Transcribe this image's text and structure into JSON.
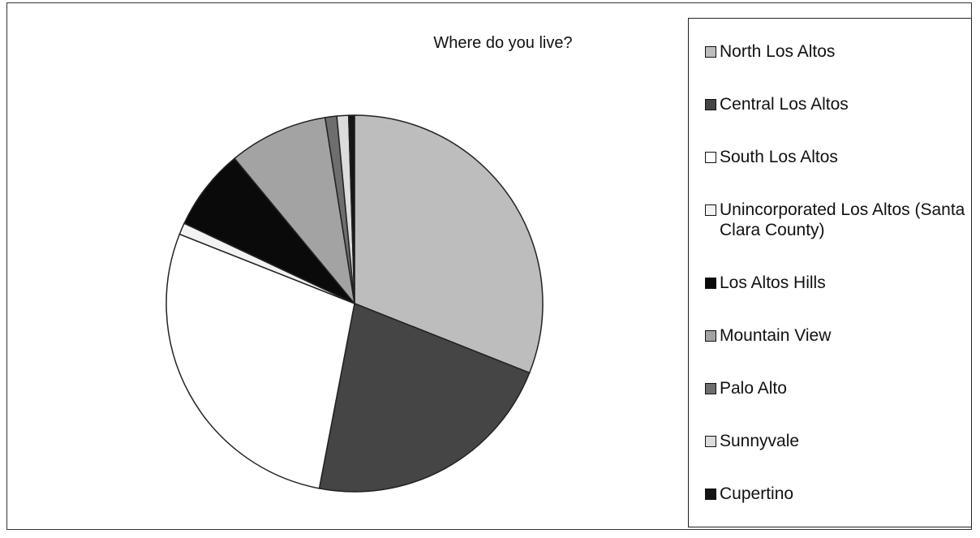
{
  "chart_data": {
    "type": "pie",
    "title": "Where do you live?",
    "categories": [
      "North Los Altos",
      "Central Los Altos",
      "South Los Altos",
      "Unincorporated Los Altos (Santa Clara County)",
      "Los Altos Hills",
      "Mountain View",
      "Palo Alto",
      "Sunnyvale",
      "Cupertino"
    ],
    "values": [
      31,
      22,
      28,
      1,
      7,
      8.5,
      1,
      1,
      0.5
    ],
    "colors": [
      "#bdbdbd",
      "#454545",
      "#ffffff",
      "#f2f2f2",
      "#0a0a0a",
      "#a3a3a3",
      "#6e6e6e",
      "#dcdcdc",
      "#151515"
    ]
  }
}
